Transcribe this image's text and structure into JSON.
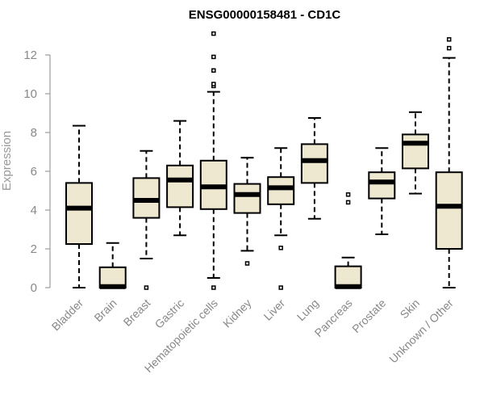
{
  "chart_data": {
    "type": "boxplot",
    "title": "ENSG00000158481 - CD1C",
    "ylabel": "Expression",
    "xlabel": "",
    "ylim": [
      0,
      13.2
    ],
    "yticks": [
      0,
      2,
      4,
      6,
      8,
      10,
      12
    ],
    "colors": {
      "box_fill": "#EEE8D0",
      "stroke": "#000000",
      "axis": "#888888"
    },
    "categories": [
      "Bladder",
      "Brain",
      "Breast",
      "Gastric",
      "Hematopoietic cells",
      "Kidney",
      "Liver",
      "Lung",
      "Pancreas",
      "Prostate",
      "Skin",
      "Unknown / Other"
    ],
    "boxes": [
      {
        "category": "Bladder",
        "whisker_low": 0.0,
        "q1": 2.25,
        "median": 4.1,
        "q3": 5.4,
        "whisker_high": 8.35,
        "outliers": []
      },
      {
        "category": "Brain",
        "whisker_low": 0.0,
        "q1": 0.0,
        "median": 0.05,
        "q3": 1.05,
        "whisker_high": 2.3,
        "outliers": []
      },
      {
        "category": "Breast",
        "whisker_low": 1.5,
        "q1": 3.6,
        "median": 4.5,
        "q3": 5.65,
        "whisker_high": 7.05,
        "outliers": [
          0.0
        ]
      },
      {
        "category": "Gastric",
        "whisker_low": 2.7,
        "q1": 4.15,
        "median": 5.55,
        "q3": 6.3,
        "whisker_high": 8.6,
        "outliers": []
      },
      {
        "category": "Hematopoietic cells",
        "whisker_low": 0.5,
        "q1": 4.05,
        "median": 5.2,
        "q3": 6.55,
        "whisker_high": 10.1,
        "outliers": [
          0.0,
          10.4,
          10.5,
          11.2,
          11.9,
          13.1
        ]
      },
      {
        "category": "Kidney",
        "whisker_low": 1.9,
        "q1": 3.85,
        "median": 4.8,
        "q3": 5.35,
        "whisker_high": 6.7,
        "outliers": [
          1.25
        ]
      },
      {
        "category": "Liver",
        "whisker_low": 2.7,
        "q1": 4.3,
        "median": 5.15,
        "q3": 5.7,
        "whisker_high": 7.2,
        "outliers": [
          0.0,
          2.05
        ]
      },
      {
        "category": "Lung",
        "whisker_low": 3.55,
        "q1": 5.4,
        "median": 6.55,
        "q3": 7.4,
        "whisker_high": 8.75,
        "outliers": []
      },
      {
        "category": "Pancreas",
        "whisker_low": 0.0,
        "q1": 0.0,
        "median": 0.05,
        "q3": 1.1,
        "whisker_high": 1.55,
        "outliers": [
          4.4,
          4.8
        ]
      },
      {
        "category": "Prostate",
        "whisker_low": 2.75,
        "q1": 4.6,
        "median": 5.45,
        "q3": 5.95,
        "whisker_high": 7.2,
        "outliers": []
      },
      {
        "category": "Skin",
        "whisker_low": 4.85,
        "q1": 6.15,
        "median": 7.45,
        "q3": 7.9,
        "whisker_high": 9.05,
        "outliers": []
      },
      {
        "category": "Unknown / Other",
        "whisker_low": 0.0,
        "q1": 2.0,
        "median": 4.2,
        "q3": 5.95,
        "whisker_high": 11.85,
        "outliers": [
          12.35,
          12.8
        ]
      }
    ]
  }
}
